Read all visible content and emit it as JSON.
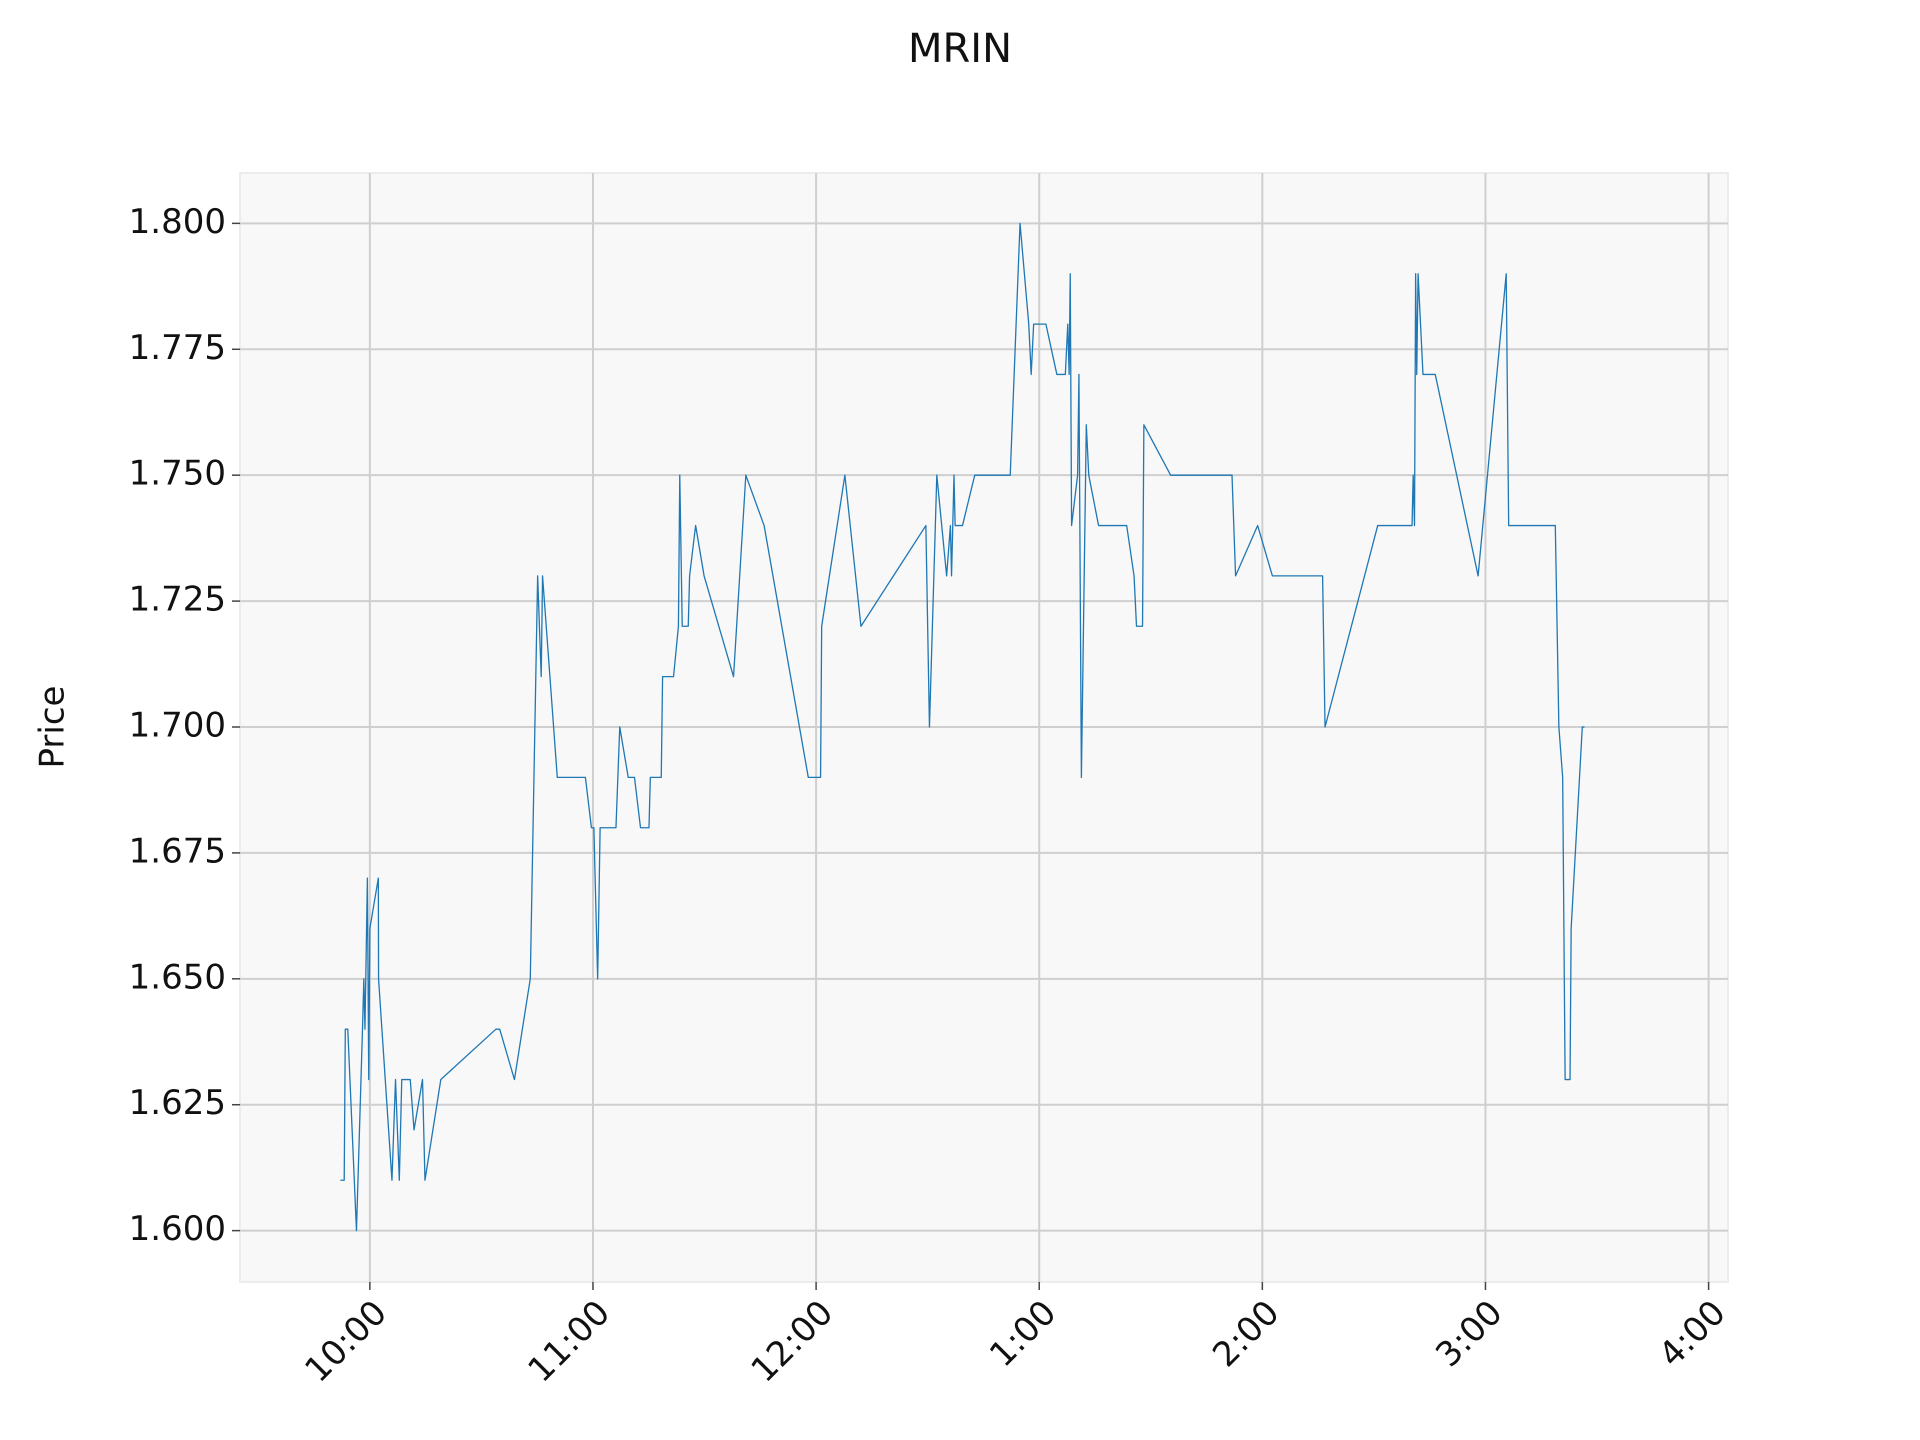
{
  "chart_data": {
    "type": "line",
    "title": "MRIN",
    "y_label": "Price",
    "color": "#1f77b4",
    "grid": true,
    "x": [
      9.868,
      9.885,
      9.89,
      9.901,
      9.94,
      9.967,
      9.973,
      9.978,
      9.989,
      9.995,
      10.0,
      10.038,
      10.039,
      10.099,
      10.115,
      10.132,
      10.143,
      10.181,
      10.198,
      10.236,
      10.247,
      10.318,
      10.565,
      10.582,
      10.648,
      10.719,
      10.752,
      10.768,
      10.774,
      10.84,
      10.966,
      10.993,
      11.004,
      11.021,
      11.032,
      11.103,
      11.12,
      11.158,
      11.186,
      11.213,
      11.251,
      11.257,
      11.306,
      11.312,
      11.361,
      11.383,
      11.389,
      11.4,
      11.427,
      11.433,
      11.46,
      11.498,
      11.63,
      11.685,
      11.767,
      11.965,
      12.02,
      12.025,
      12.129,
      12.201,
      12.492,
      12.508,
      12.541,
      12.585,
      12.602,
      12.607,
      12.618,
      12.623,
      12.656,
      12.711,
      12.87,
      12.914,
      12.953,
      12.964,
      12.975,
      13.03,
      13.079,
      13.117,
      13.128,
      13.134,
      13.139,
      13.145,
      13.172,
      13.178,
      13.189,
      13.211,
      13.222,
      13.266,
      13.392,
      13.425,
      13.436,
      13.463,
      13.469,
      13.589,
      13.864,
      13.88,
      13.979,
      14.045,
      14.27,
      14.281,
      14.517,
      14.671,
      14.676,
      14.682,
      14.687,
      14.692,
      14.698,
      14.72,
      14.775,
      14.967,
      15.093,
      15.104,
      15.313,
      15.329,
      15.346,
      15.357,
      15.379,
      15.384,
      15.434,
      15.444
    ],
    "values": [
      1.61,
      1.61,
      1.64,
      1.64,
      1.6,
      1.64,
      1.65,
      1.64,
      1.67,
      1.63,
      1.66,
      1.67,
      1.65,
      1.61,
      1.63,
      1.61,
      1.63,
      1.63,
      1.62,
      1.63,
      1.61,
      1.63,
      1.64,
      1.64,
      1.63,
      1.65,
      1.73,
      1.71,
      1.73,
      1.69,
      1.69,
      1.68,
      1.68,
      1.65,
      1.68,
      1.68,
      1.7,
      1.69,
      1.69,
      1.68,
      1.68,
      1.69,
      1.69,
      1.71,
      1.71,
      1.72,
      1.75,
      1.72,
      1.72,
      1.73,
      1.74,
      1.73,
      1.71,
      1.75,
      1.74,
      1.69,
      1.69,
      1.72,
      1.75,
      1.72,
      1.74,
      1.7,
      1.75,
      1.73,
      1.74,
      1.73,
      1.75,
      1.74,
      1.74,
      1.75,
      1.75,
      1.8,
      1.78,
      1.77,
      1.78,
      1.78,
      1.77,
      1.77,
      1.78,
      1.77,
      1.79,
      1.74,
      1.75,
      1.77,
      1.69,
      1.76,
      1.75,
      1.74,
      1.74,
      1.73,
      1.72,
      1.72,
      1.76,
      1.75,
      1.75,
      1.73,
      1.74,
      1.73,
      1.73,
      1.7,
      1.74,
      1.74,
      1.75,
      1.74,
      1.79,
      1.77,
      1.79,
      1.77,
      1.77,
      1.73,
      1.79,
      1.74,
      1.74,
      1.7,
      1.69,
      1.63,
      1.63,
      1.66,
      1.7,
      1.7
    ],
    "xlim": [
      9.418,
      16.087
    ],
    "xticks": [
      {
        "value": 10,
        "label": "10:00"
      },
      {
        "value": 11,
        "label": "11:00"
      },
      {
        "value": 12,
        "label": "12:00"
      },
      {
        "value": 13,
        "label": "1:00"
      },
      {
        "value": 14,
        "label": "2:00"
      },
      {
        "value": 15,
        "label": "3:00"
      },
      {
        "value": 16,
        "label": "4:00"
      }
    ],
    "ylim": [
      1.5898,
      1.81
    ],
    "yticks": [
      {
        "value": 1.6,
        "label": "1.600"
      },
      1.625,
      {
        "value": 1.65,
        "label": "1.650"
      },
      1.675,
      {
        "value": 1.7,
        "label": "1.700"
      },
      1.725,
      {
        "value": 1.75,
        "label": "1.750"
      },
      1.775,
      {
        "value": 1.8,
        "label": "1.800"
      }
    ]
  }
}
